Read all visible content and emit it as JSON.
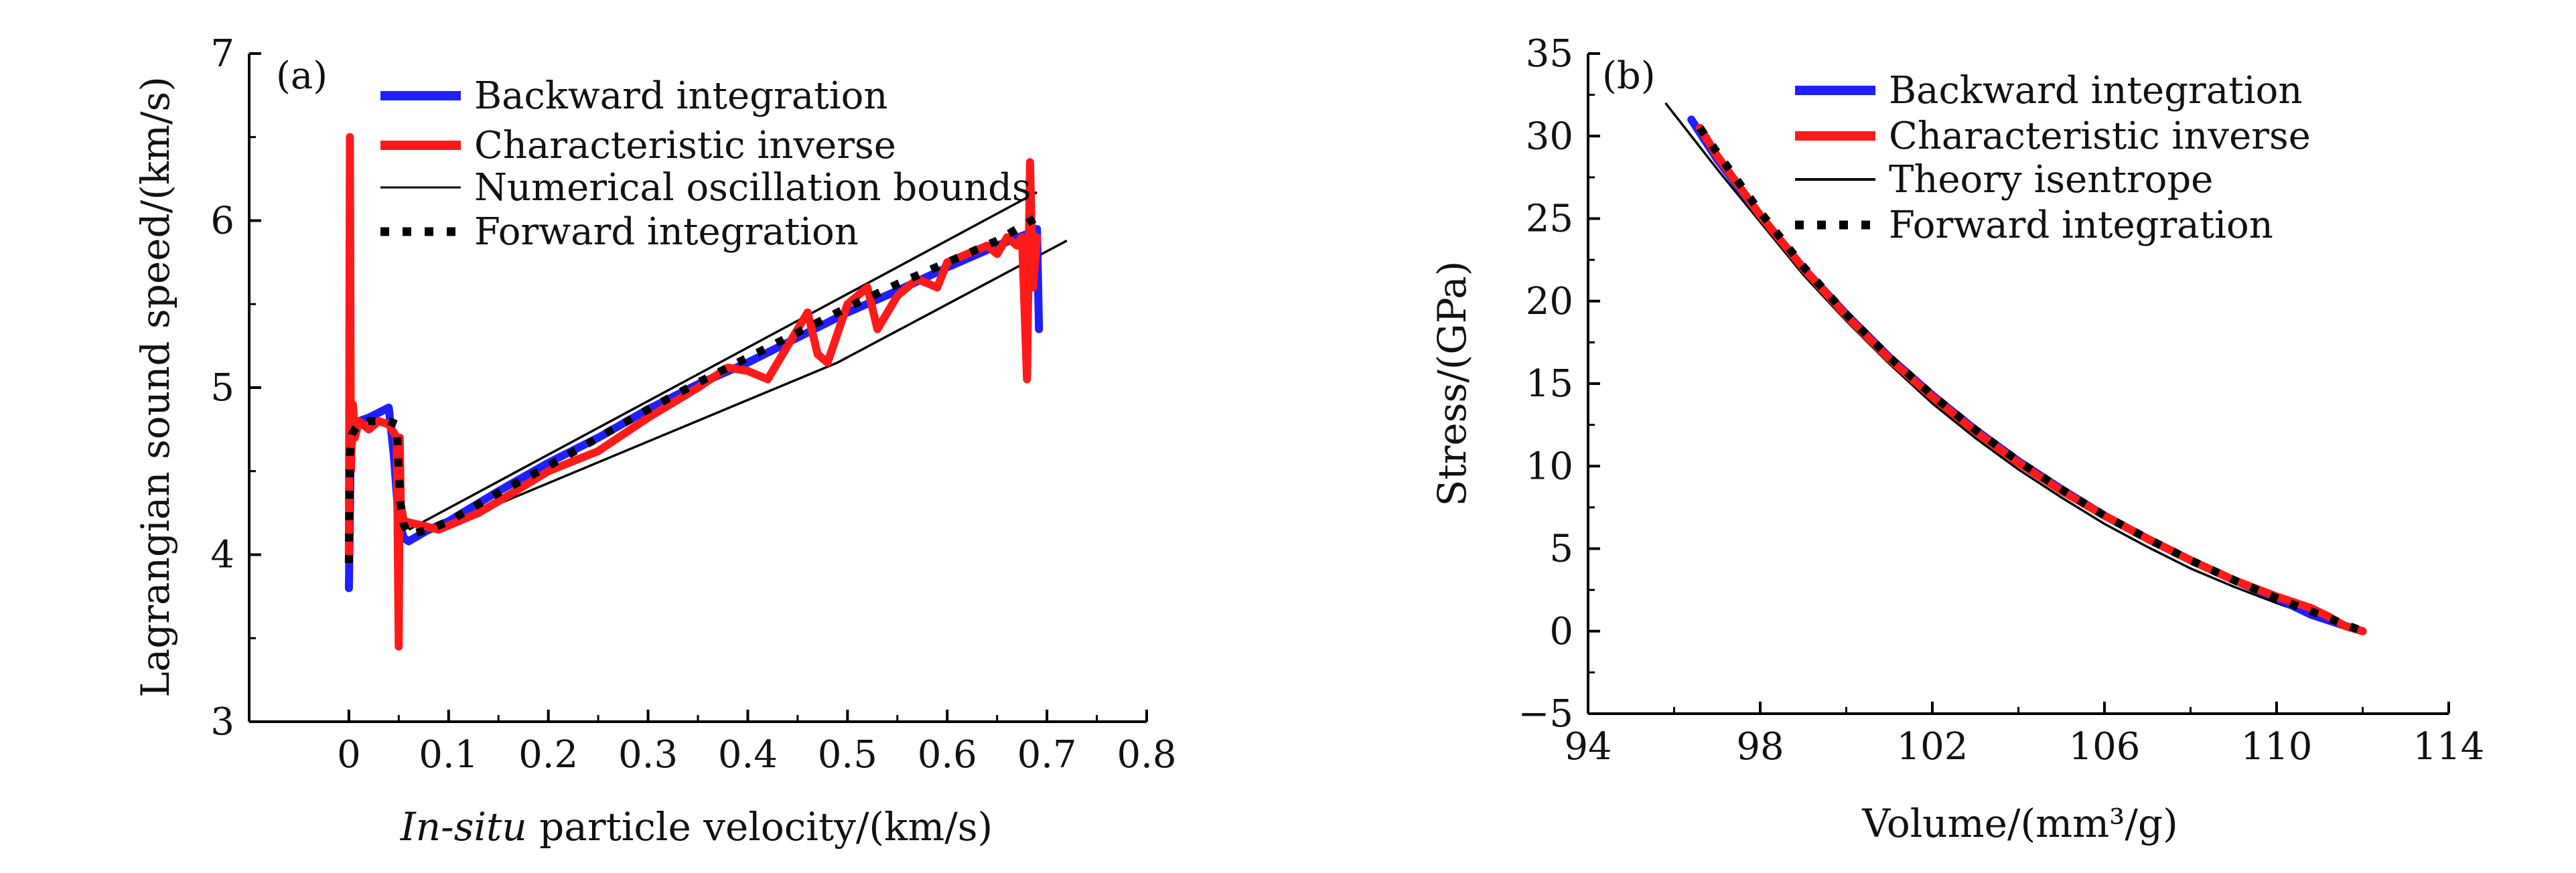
{
  "chart_data": [
    {
      "type": "line",
      "panel_label": "(a)",
      "xlabel_italic": "In-situ",
      "xlabel_rest": " particle velocity/(km/s)",
      "ylabel": "Lagrangian sound speed/(km/s)",
      "xlim": [
        -0.1,
        0.8
      ],
      "ylim": [
        3,
        7
      ],
      "xticks": [
        0,
        0.1,
        0.2,
        0.3,
        0.4,
        0.5,
        0.6,
        0.7,
        0.8
      ],
      "xtick_labels": [
        "0",
        "0.1",
        "0.2",
        "0.3",
        "0.4",
        "0.5",
        "0.6",
        "0.7",
        "0.8"
      ],
      "yticks": [
        3,
        4,
        5,
        6,
        7
      ],
      "ytick_labels": [
        "3",
        "4",
        "5",
        "6",
        "7"
      ],
      "legend_position": "top-right",
      "series": [
        {
          "name": "Backward integration",
          "color": "#1f1fff",
          "style": "solid-thick",
          "x": [
            0,
            0.002,
            0.004,
            0.01,
            0.02,
            0.03,
            0.04,
            0.045,
            0.05,
            0.055,
            0.06,
            0.08,
            0.1,
            0.15,
            0.2,
            0.25,
            0.3,
            0.35,
            0.4,
            0.45,
            0.5,
            0.55,
            0.6,
            0.65,
            0.68,
            0.69,
            0.692
          ],
          "y": [
            3.8,
            4.7,
            4.78,
            4.8,
            4.82,
            4.85,
            4.88,
            4.6,
            4.2,
            4.1,
            4.08,
            4.15,
            4.2,
            4.38,
            4.55,
            4.7,
            4.87,
            5.02,
            5.15,
            5.3,
            5.45,
            5.58,
            5.72,
            5.85,
            5.92,
            5.95,
            5.35
          ]
        },
        {
          "name": "Characteristic inverse",
          "color": "#ff1a1a",
          "style": "solid-thick",
          "x": [
            0,
            0.001,
            0.002,
            0.004,
            0.006,
            0.01,
            0.02,
            0.03,
            0.04,
            0.048,
            0.05,
            0.051,
            0.052,
            0.055,
            0.07,
            0.09,
            0.11,
            0.13,
            0.15,
            0.2,
            0.25,
            0.3,
            0.35,
            0.38,
            0.4,
            0.42,
            0.44,
            0.46,
            0.47,
            0.48,
            0.5,
            0.52,
            0.53,
            0.55,
            0.57,
            0.59,
            0.6,
            0.62,
            0.64,
            0.65,
            0.66,
            0.67,
            0.675,
            0.68,
            0.683,
            0.686,
            0.69
          ],
          "y": [
            4.0,
            6.5,
            4.5,
            4.9,
            4.7,
            4.8,
            4.75,
            4.8,
            4.78,
            4.7,
            3.45,
            4.7,
            4.3,
            4.2,
            4.18,
            4.15,
            4.2,
            4.25,
            4.32,
            4.5,
            4.62,
            4.82,
            5.0,
            5.12,
            5.1,
            5.05,
            5.25,
            5.45,
            5.2,
            5.15,
            5.5,
            5.6,
            5.35,
            5.55,
            5.65,
            5.6,
            5.75,
            5.8,
            5.85,
            5.8,
            5.9,
            5.85,
            5.9,
            5.05,
            6.35,
            5.6,
            5.9
          ]
        },
        {
          "name": "Numerical oscillation bounds",
          "color": "#000000",
          "style": "solid-thin",
          "lines": [
            {
              "x": [
                0.06,
                0.69
              ],
              "y": [
                4.15,
                6.17
              ]
            },
            {
              "x": [
                0.06,
                0.49,
                0.72
              ],
              "y": [
                4.08,
                5.15,
                5.88
              ]
            }
          ]
        },
        {
          "name": "Forward integration",
          "color": "#000000",
          "style": "dotted",
          "x": [
            0,
            0.001,
            0.003,
            0.006,
            0.01,
            0.02,
            0.03,
            0.04,
            0.048,
            0.05,
            0.052,
            0.055,
            0.06,
            0.08,
            0.1,
            0.15,
            0.2,
            0.25,
            0.3,
            0.35,
            0.4,
            0.45,
            0.5,
            0.55,
            0.6,
            0.65,
            0.69
          ],
          "y": [
            3.95,
            4.6,
            4.72,
            4.75,
            4.78,
            4.8,
            4.8,
            4.8,
            4.78,
            4.5,
            4.3,
            4.18,
            4.12,
            4.15,
            4.2,
            4.37,
            4.53,
            4.7,
            4.87,
            5.03,
            5.18,
            5.33,
            5.48,
            5.62,
            5.75,
            5.88,
            6.02
          ]
        }
      ]
    },
    {
      "type": "line",
      "panel_label": "(b)",
      "xlabel": "Volume/(mm³/g)",
      "ylabel": "Stress/(GPa)",
      "xlim": [
        94,
        114
      ],
      "ylim": [
        -5,
        35
      ],
      "xticks": [
        94,
        98,
        102,
        106,
        110,
        114
      ],
      "xtick_labels": [
        "94",
        "98",
        "102",
        "106",
        "110",
        "114"
      ],
      "yticks": [
        -5,
        0,
        5,
        10,
        15,
        20,
        25,
        30,
        35
      ],
      "ytick_labels": [
        "−5",
        "0",
        "5",
        "10",
        "15",
        "20",
        "25",
        "30",
        "35"
      ],
      "legend_position": "top-right",
      "series": [
        {
          "name": "Backward integration",
          "color": "#1f1fff",
          "style": "solid-thick",
          "x": [
            96.4,
            97,
            98,
            99,
            100,
            101,
            102,
            103,
            104,
            105,
            106,
            107,
            108,
            109,
            110,
            110.8,
            111.5,
            112
          ],
          "y": [
            31.0,
            28.6,
            25.2,
            22.0,
            19.2,
            16.6,
            14.3,
            12.2,
            10.3,
            8.6,
            7.0,
            5.6,
            4.3,
            3.1,
            2.0,
            1.0,
            0.4,
            0.0
          ]
        },
        {
          "name": "Characteristic inverse",
          "color": "#ff1a1a",
          "style": "solid-thick",
          "x": [
            96.6,
            97,
            98,
            99,
            100,
            101,
            102,
            103,
            104,
            105,
            106,
            107,
            108,
            109,
            110,
            110.8,
            111.2,
            111.6,
            112
          ],
          "y": [
            30.5,
            28.8,
            25.2,
            22.0,
            19.1,
            16.5,
            14.2,
            12.1,
            10.2,
            8.5,
            7.0,
            5.6,
            4.3,
            3.1,
            2.1,
            1.4,
            0.9,
            0.3,
            0.0
          ]
        },
        {
          "name": "Theory isentrope",
          "color": "#000000",
          "style": "solid-thin",
          "x": [
            95.8,
            97,
            98,
            99,
            100,
            101,
            102,
            103,
            104,
            105,
            106,
            107,
            108,
            109,
            110,
            111,
            112
          ],
          "y": [
            32.0,
            28.0,
            24.8,
            21.6,
            18.8,
            16.2,
            13.8,
            11.7,
            9.8,
            8.1,
            6.5,
            5.1,
            3.8,
            2.7,
            1.7,
            0.8,
            0.0
          ]
        },
        {
          "name": "Forward integration",
          "color": "#000000",
          "style": "dotted",
          "x": [
            96.6,
            97,
            98,
            99,
            100,
            101,
            102,
            103,
            104,
            105,
            106,
            107,
            108,
            109,
            110,
            111,
            112
          ],
          "y": [
            30.5,
            29.0,
            25.4,
            22.1,
            19.2,
            16.6,
            14.3,
            12.2,
            10.3,
            8.6,
            7.0,
            5.6,
            4.3,
            3.1,
            2.0,
            1.0,
            0.0
          ]
        }
      ]
    }
  ]
}
